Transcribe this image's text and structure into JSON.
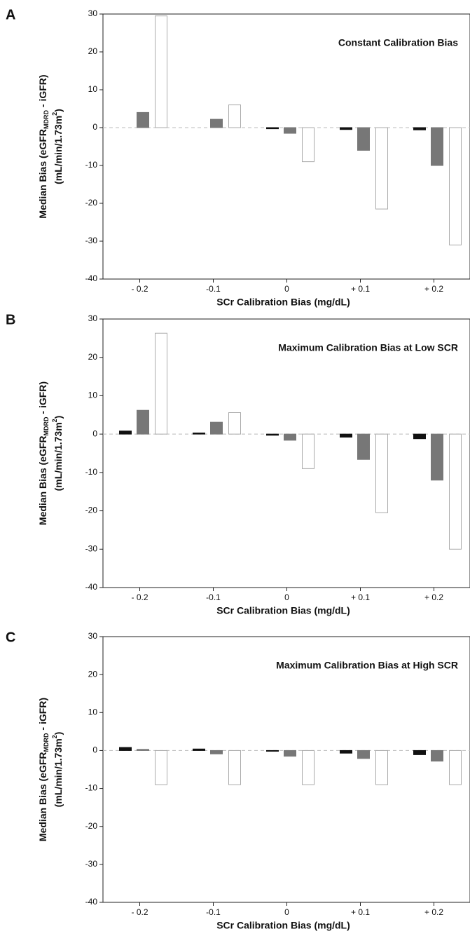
{
  "chart_data": [
    {
      "type": "bar",
      "panel": "A",
      "title": "Constant Calibration Bias",
      "categories": [
        "- 0.2",
        "-0.1",
        "0",
        "+ 0.1",
        "+ 0.2"
      ],
      "series": [
        {
          "color": "#111111",
          "values": [
            0,
            0,
            -0.3,
            -0.5,
            -0.6
          ]
        },
        {
          "color": "#777777",
          "values": [
            4,
            2.2,
            -1.5,
            -6,
            -10
          ]
        },
        {
          "color": "#ffffff",
          "values": [
            29.5,
            6,
            -9,
            -21.5,
            -31
          ]
        }
      ],
      "ylim": [
        -40,
        30
      ],
      "yticks": [
        -40,
        -30,
        -20,
        -10,
        0,
        10,
        20,
        30
      ],
      "reference_line": 0,
      "xlabel": "SCr Calibration Bias (mg/dL)",
      "ylabel": [
        "Median Bias (eGFR",
        "MDRD",
        " - iGFR)"
      ],
      "ylabel2": [
        "(mL/min/1.73m",
        "2",
        ")"
      ]
    },
    {
      "type": "bar",
      "panel": "B",
      "title": "Maximum Calibration Bias at Low SCR",
      "categories": [
        "- 0.2",
        "-0.1",
        "0",
        "+ 0.1",
        "+ 0.2"
      ],
      "series": [
        {
          "color": "#111111",
          "values": [
            0.8,
            0.3,
            -0.3,
            -0.8,
            -1.2
          ]
        },
        {
          "color": "#777777",
          "values": [
            6.2,
            3.1,
            -1.6,
            -6.6,
            -12
          ]
        },
        {
          "color": "#ffffff",
          "values": [
            26.3,
            5.6,
            -9,
            -20.5,
            -30
          ]
        }
      ],
      "ylim": [
        -40,
        30
      ],
      "yticks": [
        -40,
        -30,
        -20,
        -10,
        0,
        10,
        20,
        30
      ],
      "reference_line": 0,
      "xlabel": "SCr Calibration Bias (mg/dL)",
      "ylabel": [
        "Median Bias (eGFR",
        "MDRD",
        " - iGFR)"
      ],
      "ylabel2": [
        "(mL/min/1.73m",
        "2",
        ")"
      ]
    },
    {
      "type": "bar",
      "panel": "C",
      "title": "Maximum Calibration Bias at High SCR",
      "categories": [
        "- 0.2",
        "-0.1",
        "0",
        "+ 0.1",
        "+ 0.2"
      ],
      "series": [
        {
          "color": "#111111",
          "values": [
            0.8,
            0.4,
            -0.2,
            -0.7,
            -1.1
          ]
        },
        {
          "color": "#777777",
          "values": [
            0.3,
            -0.9,
            -1.5,
            -2.1,
            -2.8
          ]
        },
        {
          "color": "#ffffff",
          "values": [
            -9,
            -9,
            -9,
            -9,
            -9
          ]
        }
      ],
      "ylim": [
        -40,
        30
      ],
      "yticks": [
        -40,
        -30,
        -20,
        -10,
        0,
        10,
        20,
        30
      ],
      "reference_line": 0,
      "xlabel": "SCr Calibration Bias (mg/dL)",
      "ylabel": [
        "Median Bias (eGFR",
        "MDRD",
        " - iGFR)"
      ],
      "ylabel2": [
        "(mL/min/1.73m",
        "2",
        ")"
      ]
    }
  ]
}
